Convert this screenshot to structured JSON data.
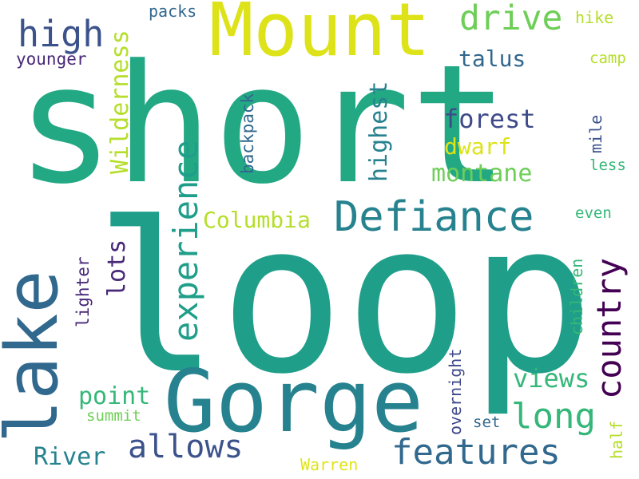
{
  "palette": {
    "teal": "#23a884",
    "dark_teal": "#1f9e89",
    "blue_green": "#26828e",
    "slate": "#31688e",
    "navy": "#3b528b",
    "indigo": "#3e4a89",
    "purple": "#440154",
    "plum": "#482878",
    "green": "#35b779",
    "lime": "#6ece58",
    "yellow_green": "#b5de2b",
    "yellow": "#dde318",
    "gold": "#e0e418"
  },
  "words": [
    {
      "key": "short",
      "text": "short"
    },
    {
      "key": "loop",
      "text": "loop"
    },
    {
      "key": "mount",
      "text": "Mount"
    },
    {
      "key": "gorge",
      "text": "Gorge"
    },
    {
      "key": "lake",
      "text": "lake"
    },
    {
      "key": "defiance",
      "text": "Defiance"
    },
    {
      "key": "high",
      "text": "high"
    },
    {
      "key": "drive",
      "text": "drive"
    },
    {
      "key": "country",
      "text": "country"
    },
    {
      "key": "experience",
      "text": "experience"
    },
    {
      "key": "features",
      "text": "features"
    },
    {
      "key": "long",
      "text": "long"
    },
    {
      "key": "allows",
      "text": "allows"
    },
    {
      "key": "columbia",
      "text": "Columbia"
    },
    {
      "key": "montane",
      "text": "montane"
    },
    {
      "key": "forest",
      "text": "forest"
    },
    {
      "key": "highest",
      "text": "highest"
    },
    {
      "key": "wilderness",
      "text": "Wilderness"
    },
    {
      "key": "views",
      "text": "views"
    },
    {
      "key": "point",
      "text": "point"
    },
    {
      "key": "river",
      "text": "River"
    },
    {
      "key": "talus",
      "text": "talus"
    },
    {
      "key": "dwarf",
      "text": "dwarf"
    },
    {
      "key": "lots",
      "text": "lots"
    },
    {
      "key": "younger",
      "text": "younger"
    },
    {
      "key": "packs",
      "text": "packs"
    },
    {
      "key": "hike",
      "text": "hike"
    },
    {
      "key": "camp",
      "text": "camp"
    },
    {
      "key": "backpack",
      "text": "backpack"
    },
    {
      "key": "mile",
      "text": "mile"
    },
    {
      "key": "less",
      "text": "less"
    },
    {
      "key": "even",
      "text": "even"
    },
    {
      "key": "children",
      "text": "children"
    },
    {
      "key": "lighter",
      "text": "lighter"
    },
    {
      "key": "overnight",
      "text": "overnight"
    },
    {
      "key": "half",
      "text": "half"
    },
    {
      "key": "summit",
      "text": "summit"
    },
    {
      "key": "set",
      "text": "set"
    },
    {
      "key": "warren",
      "text": "Warren"
    }
  ]
}
